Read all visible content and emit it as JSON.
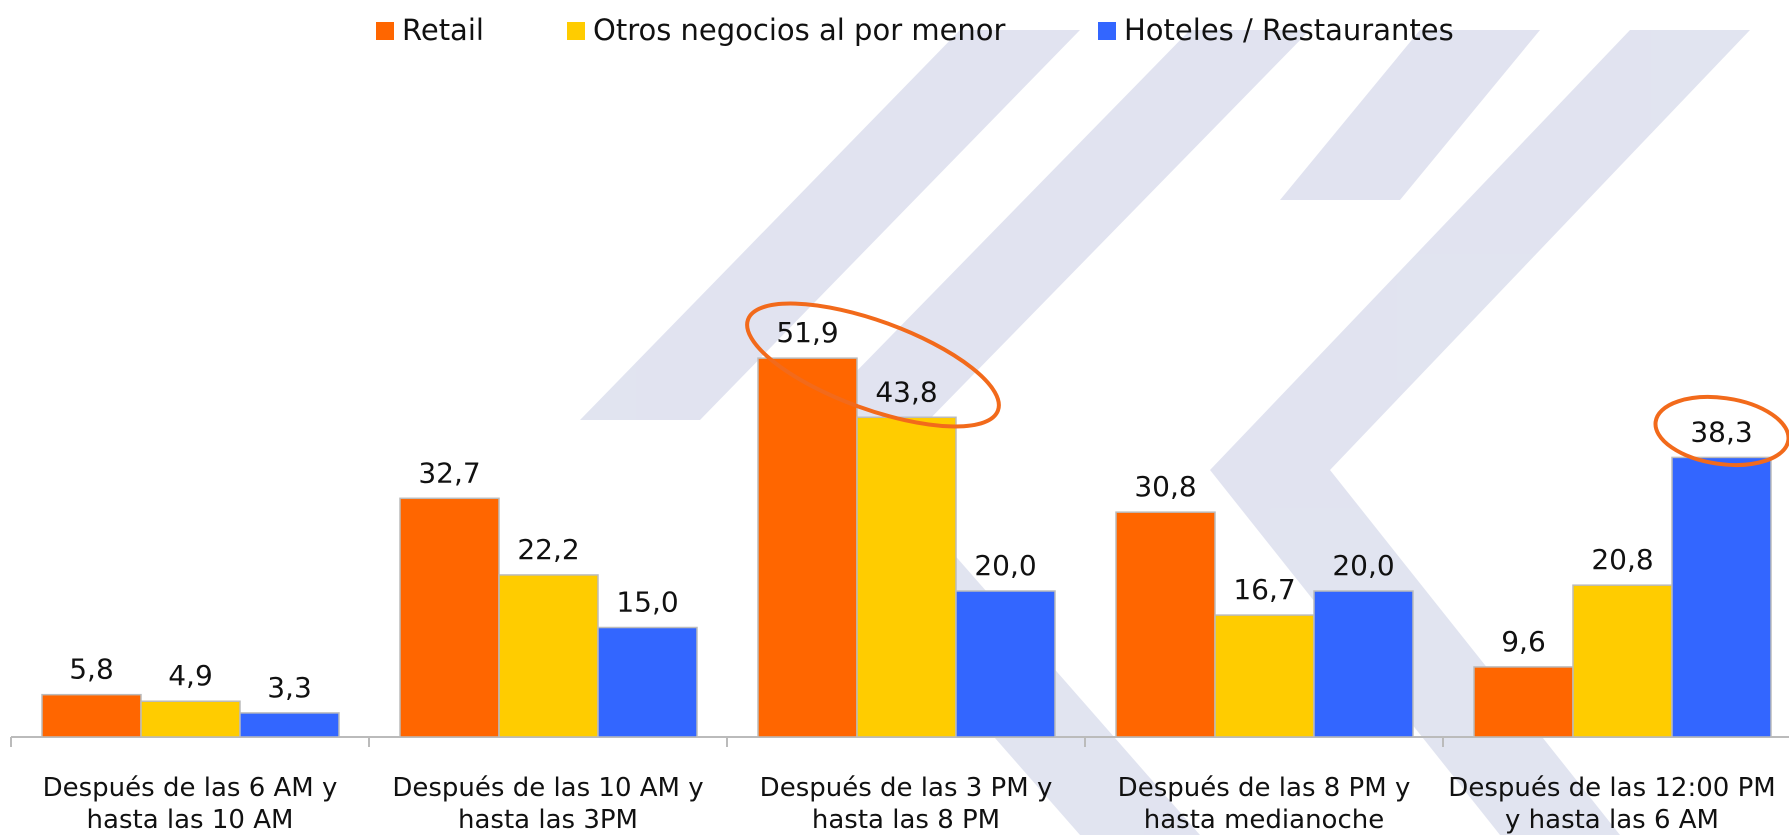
{
  "chart_data": {
    "type": "bar",
    "categories": [
      [
        "Después de las  6 AM y",
        "hasta las 10 AM"
      ],
      [
        "Después de las 10 AM y",
        "hasta las 3PM"
      ],
      [
        "Después de las 3 PM y",
        "hasta las 8 PM"
      ],
      [
        "Después de las 8 PM  y",
        "hasta medianoche"
      ],
      [
        "Después de las 12:00 PM",
        "y hasta las 6 AM"
      ]
    ],
    "series": [
      {
        "name": "Retail",
        "color": "#ff6600",
        "values": [
          5.8,
          32.7,
          51.9,
          30.8,
          9.6
        ],
        "value_labels": [
          "5,8",
          "32,7",
          "51,9",
          "30,8",
          "9,6"
        ]
      },
      {
        "name": "Otros negocios al por menor",
        "color": "#ffcc00",
        "values": [
          4.9,
          22.2,
          43.8,
          16.7,
          20.8
        ],
        "value_labels": [
          "4,9",
          "22,2",
          "43,8",
          "16,7",
          "20,8"
        ]
      },
      {
        "name": "Hoteles / Restaurantes",
        "color": "#3366ff",
        "values": [
          3.3,
          15.0,
          20.0,
          20.0,
          38.3
        ],
        "value_labels": [
          "3,3",
          "15,0",
          "20,0",
          "20,0",
          "38,3"
        ]
      }
    ],
    "ylim": [
      0,
      100
    ],
    "legend": "top"
  }
}
